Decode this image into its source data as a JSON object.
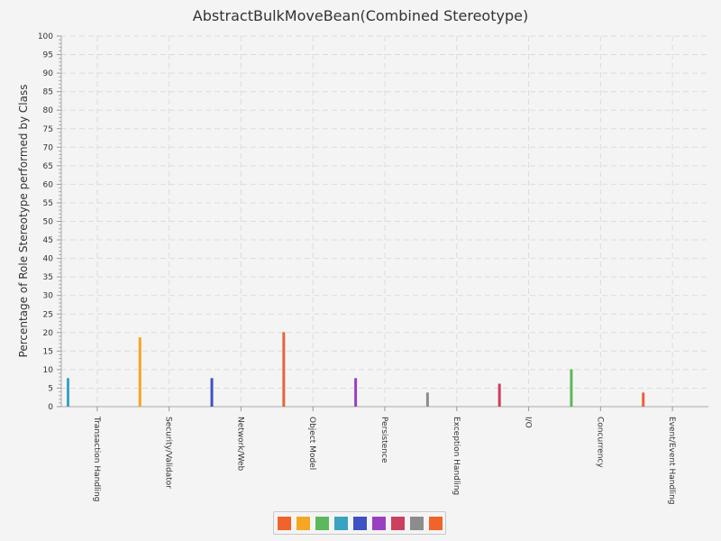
{
  "chart_data": {
    "type": "bar",
    "title": "AbstractBulkMoveBean(Combined Stereotype)",
    "ylabel": "Percentage of Role Stereotype performed by Class",
    "xlabel": "",
    "ylim": [
      0,
      100
    ],
    "ytick_step": 5,
    "grid": true,
    "legend_position": "bottom",
    "categories": [
      "Transaction Handling",
      "Security/Validator",
      "Network/Web",
      "Object Model",
      "Persistence",
      "Exception Handling",
      "I/O",
      "Concurrency",
      "Event/Event Handling"
    ],
    "values": [
      7.7,
      18.7,
      7.7,
      20.1,
      7.7,
      3.8,
      6.2,
      10.1,
      3.8
    ],
    "bar_colors": [
      "#3aa3c2",
      "#f5a623",
      "#3f51c4",
      "#e8643a",
      "#9b3fc2",
      "#8c8c8c",
      "#cc3f5f",
      "#5cb85c",
      "#e8643a"
    ],
    "legend_colors": [
      "#f0632b",
      "#f5a623",
      "#5cb85c",
      "#3aa3c2",
      "#3f51c4",
      "#9b3fc2",
      "#cc3f5f",
      "#8c8c8c",
      "#f0632b"
    ]
  }
}
